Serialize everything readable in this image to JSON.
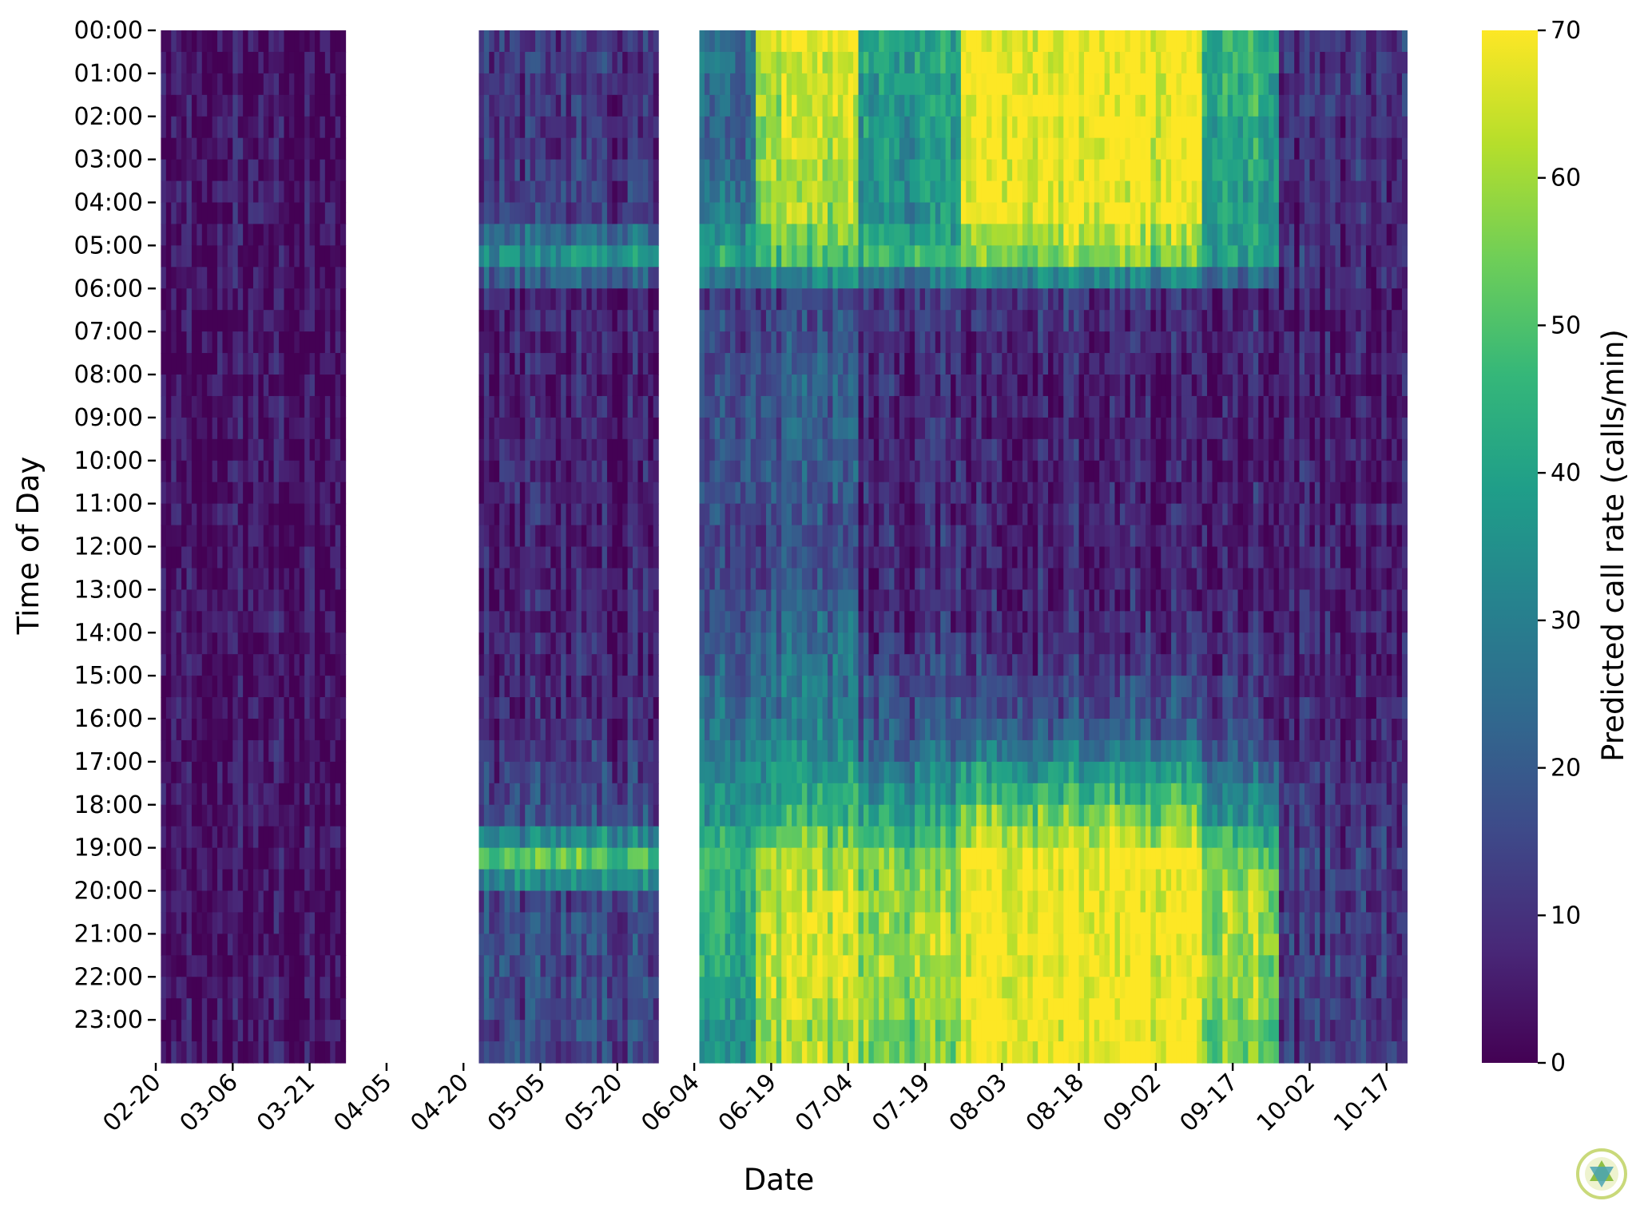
{
  "chart_data": {
    "type": "heatmap",
    "xlabel": "Date",
    "ylabel": "Time of Day",
    "x_tick_labels": [
      "02-20",
      "03-06",
      "03-21",
      "04-05",
      "04-20",
      "05-05",
      "05-20",
      "06-04",
      "06-19",
      "07-04",
      "07-19",
      "08-03",
      "08-18",
      "09-02",
      "09-17",
      "10-02",
      "10-17"
    ],
    "y_tick_labels": [
      "00:00",
      "01:00",
      "02:00",
      "03:00",
      "04:00",
      "05:00",
      "06:00",
      "07:00",
      "08:00",
      "09:00",
      "10:00",
      "11:00",
      "12:00",
      "13:00",
      "14:00",
      "15:00",
      "16:00",
      "17:00",
      "18:00",
      "19:00",
      "20:00",
      "21:00",
      "22:00",
      "23:00"
    ],
    "colorbar": {
      "label": "Predicted call rate (calls/min)",
      "range": [
        0,
        70
      ],
      "ticks": [
        0,
        10,
        20,
        30,
        40,
        50,
        60,
        70
      ],
      "colormap": "viridis"
    },
    "date_range": [
      "02-20",
      "10-20"
    ],
    "recording_periods": [
      {
        "start": "02-21",
        "end": "03-27"
      },
      {
        "start": "04-23",
        "end": "05-27"
      },
      {
        "start": "06-05",
        "end": "10-20"
      }
    ],
    "monthly_profile_by_hour": {
      "hours": [
        0,
        2,
        4,
        5,
        6,
        8,
        10,
        12,
        14,
        16,
        18,
        19,
        20,
        22,
        23
      ],
      "series": [
        {
          "period": "02-21 to 03-27",
          "values": [
            3,
            3,
            4,
            3,
            3,
            3,
            3,
            3,
            3,
            3,
            3,
            3,
            3,
            3,
            3
          ]
        },
        {
          "period": "04-23 to 05-27",
          "values": [
            10,
            10,
            12,
            35,
            6,
            5,
            6,
            5,
            6,
            8,
            15,
            50,
            15,
            15,
            14
          ]
        },
        {
          "period": "06-05 to 06-15",
          "values": [
            25,
            22,
            28,
            40,
            12,
            15,
            18,
            12,
            18,
            25,
            35,
            45,
            45,
            40,
            35
          ]
        },
        {
          "period": "06-15 to 07-05",
          "values": [
            65,
            62,
            60,
            50,
            15,
            20,
            20,
            15,
            25,
            30,
            45,
            60,
            65,
            65,
            60
          ]
        },
        {
          "period": "07-05 to 07-25",
          "values": [
            40,
            38,
            35,
            45,
            10,
            8,
            8,
            8,
            10,
            20,
            40,
            55,
            60,
            60,
            55
          ]
        },
        {
          "period": "07-25 to 09-10",
          "values": [
            70,
            70,
            68,
            55,
            10,
            5,
            6,
            6,
            8,
            20,
            55,
            70,
            70,
            70,
            70
          ]
        },
        {
          "period": "09-10 to 09-25",
          "values": [
            45,
            42,
            40,
            40,
            8,
            6,
            6,
            6,
            8,
            15,
            35,
            55,
            60,
            58,
            55
          ]
        },
        {
          "period": "09-25 to 10-20",
          "values": [
            12,
            10,
            8,
            10,
            5,
            5,
            6,
            5,
            6,
            8,
            10,
            12,
            12,
            12,
            12
          ]
        }
      ]
    },
    "colors": {
      "colormap_stops": [
        "#440154",
        "#482878",
        "#3e4989",
        "#31688e",
        "#26828e",
        "#1f9e89",
        "#35b779",
        "#6ece58",
        "#b5de2b",
        "#fde725"
      ]
    }
  }
}
